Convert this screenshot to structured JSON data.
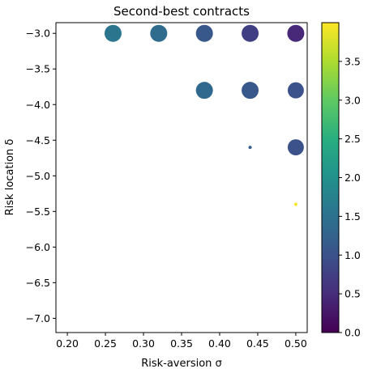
{
  "chart_data": {
    "type": "scatter",
    "title": "Second-best contracts",
    "xlabel": "Risk-aversion σ",
    "ylabel": "Risk location δ",
    "xlim": [
      0.185,
      0.515
    ],
    "ylim": [
      -7.2,
      -2.85
    ],
    "xticks": [
      "0.20",
      "0.25",
      "0.30",
      "0.35",
      "0.40",
      "0.45",
      "0.50"
    ],
    "xtick_values": [
      0.2,
      0.25,
      0.3,
      0.35,
      0.4,
      0.45,
      0.5
    ],
    "yticks": [
      "−3.0",
      "−3.5",
      "−4.0",
      "−4.5",
      "−5.0",
      "−5.5",
      "−6.0",
      "−6.5",
      "−7.0"
    ],
    "ytick_values": [
      -3.0,
      -3.5,
      -4.0,
      -4.5,
      -5.0,
      -5.5,
      -6.0,
      -6.5,
      -7.0
    ],
    "grid": false,
    "colormap": "viridis",
    "colorbar": {
      "range": [
        0,
        4
      ],
      "ticks": [
        "0.0",
        "0.5",
        "1.0",
        "1.5",
        "2.0",
        "2.5",
        "3.0",
        "3.5"
      ],
      "tick_values": [
        0.0,
        0.5,
        1.0,
        1.5,
        2.0,
        2.5,
        3.0,
        3.5
      ]
    },
    "points": [
      {
        "x": 0.26,
        "y": -3.0,
        "color_value": 1.55,
        "size": 1.0
      },
      {
        "x": 0.32,
        "y": -3.0,
        "color_value": 1.4,
        "size": 1.0
      },
      {
        "x": 0.38,
        "y": -3.0,
        "color_value": 1.1,
        "size": 1.0
      },
      {
        "x": 0.44,
        "y": -3.0,
        "color_value": 0.75,
        "size": 1.0
      },
      {
        "x": 0.5,
        "y": -3.0,
        "color_value": 0.45,
        "size": 1.0
      },
      {
        "x": 0.38,
        "y": -3.8,
        "color_value": 1.35,
        "size": 1.0
      },
      {
        "x": 0.44,
        "y": -3.8,
        "color_value": 1.1,
        "size": 1.0
      },
      {
        "x": 0.5,
        "y": -3.8,
        "color_value": 1.0,
        "size": 0.95
      },
      {
        "x": 0.44,
        "y": -4.6,
        "color_value": 1.2,
        "size": 0.1
      },
      {
        "x": 0.5,
        "y": -4.6,
        "color_value": 1.0,
        "size": 0.95
      },
      {
        "x": 0.5,
        "y": -5.4,
        "color_value": 3.95,
        "size": 0.1
      }
    ]
  }
}
